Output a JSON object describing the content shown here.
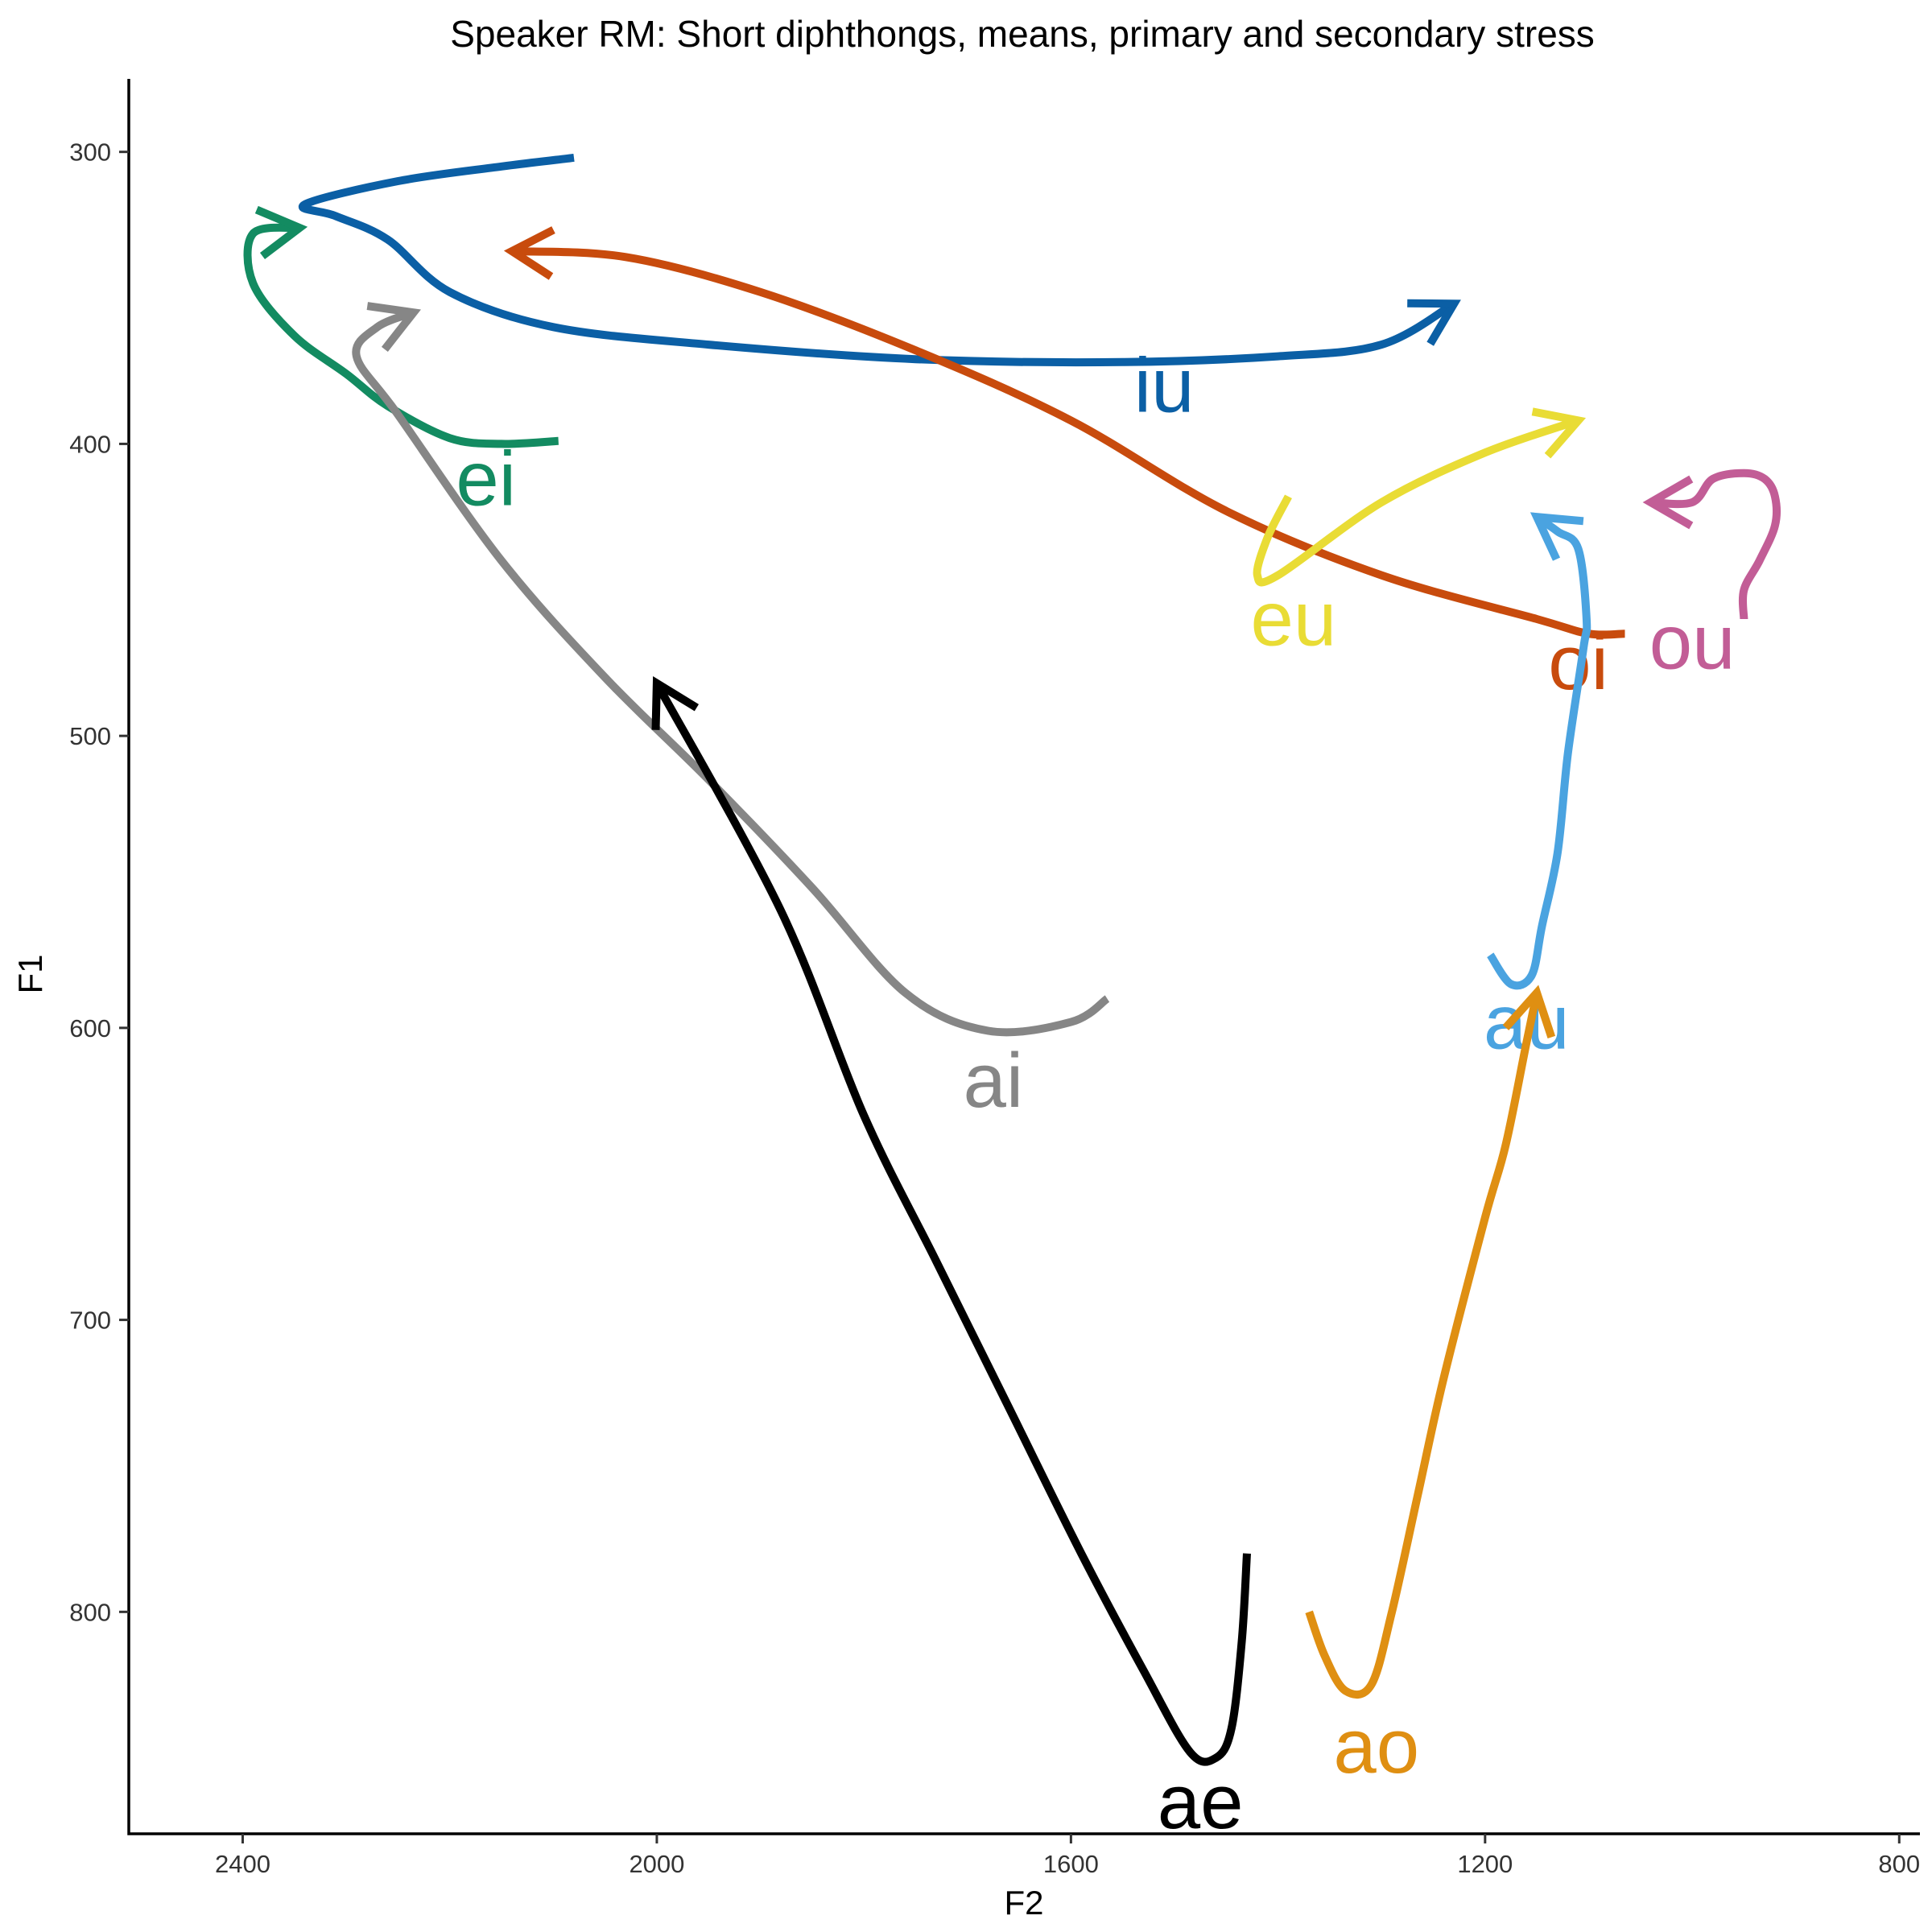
{
  "chart_data": {
    "type": "line",
    "title": "Speaker RM: Short diphthongs, means, primary and secondary stress",
    "xlabel": "F2",
    "ylabel": "F1",
    "xlim": [
      2510,
      780
    ],
    "ylim": [
      876,
      275
    ],
    "x_reversed": true,
    "y_reversed": true,
    "x_ticks": [
      2400,
      2000,
      1600,
      1200,
      800
    ],
    "y_ticks": [
      300,
      400,
      500,
      600,
      700,
      800
    ],
    "grid": false,
    "legend": "none",
    "series": [
      {
        "name": "iu",
        "color": "#0b5fa5",
        "label_pos": [
          1510,
          382
        ],
        "points": [
          [
            2080,
            302
          ],
          [
            2150,
            305
          ],
          [
            2250,
            310
          ],
          [
            2340,
            318
          ],
          [
            2310,
            322
          ],
          [
            2260,
            330
          ],
          [
            2200,
            348
          ],
          [
            2100,
            360
          ],
          [
            1950,
            366
          ],
          [
            1750,
            371
          ],
          [
            1550,
            372
          ],
          [
            1400,
            370
          ],
          [
            1300,
            366
          ],
          [
            1230,
            352
          ]
        ]
      },
      {
        "name": "ei",
        "color": "#138b61",
        "label_pos": [
          2165,
          414
        ],
        "points": [
          [
            2095,
            399
          ],
          [
            2150,
            400
          ],
          [
            2200,
            398
          ],
          [
            2260,
            387
          ],
          [
            2300,
            376
          ],
          [
            2350,
            363
          ],
          [
            2390,
            345
          ],
          [
            2390,
            328
          ],
          [
            2345,
            326
          ]
        ]
      },
      {
        "name": "oi",
        "color": "#c84b0d",
        "label_pos": [
          1110,
          477
        ],
        "points": [
          [
            1065,
            465
          ],
          [
            1100,
            465
          ],
          [
            1150,
            460
          ],
          [
            1300,
            445
          ],
          [
            1450,
            423
          ],
          [
            1600,
            392
          ],
          [
            1750,
            368
          ],
          [
            1900,
            348
          ],
          [
            2030,
            336
          ],
          [
            2140,
            334
          ]
        ]
      },
      {
        "name": "ai",
        "color": "#868686",
        "label_pos": [
          1675,
          620
        ],
        "points": [
          [
            1565,
            590
          ],
          [
            1600,
            598
          ],
          [
            1680,
            601
          ],
          [
            1760,
            588
          ],
          [
            1850,
            552
          ],
          [
            1950,
            515
          ],
          [
            2050,
            480
          ],
          [
            2150,
            440
          ],
          [
            2250,
            390
          ],
          [
            2290,
            370
          ],
          [
            2270,
            360
          ],
          [
            2235,
            355
          ]
        ]
      },
      {
        "name": "eu",
        "color": "#e9dc35",
        "label_pos": [
          1385,
          462
        ],
        "points": [
          [
            1390,
            418
          ],
          [
            1410,
            432
          ],
          [
            1420,
            445
          ],
          [
            1400,
            445
          ],
          [
            1300,
            420
          ],
          [
            1200,
            403
          ],
          [
            1110,
            392
          ]
        ]
      },
      {
        "name": "au",
        "color": "#4aa3e0",
        "label_pos": [
          1160,
          600
        ],
        "points": [
          [
            1195,
            575
          ],
          [
            1175,
            585
          ],
          [
            1155,
            582
          ],
          [
            1145,
            565
          ],
          [
            1130,
            540
          ],
          [
            1120,
            506
          ],
          [
            1105,
            470
          ],
          [
            1102,
            460
          ],
          [
            1110,
            436
          ],
          [
            1130,
            430
          ],
          [
            1150,
            425
          ]
        ]
      },
      {
        "name": "ou",
        "color": "#c25d96",
        "label_pos": [
          1000,
          470
        ],
        "points": [
          [
            950,
            460
          ],
          [
            950,
            450
          ],
          [
            935,
            440
          ],
          [
            920,
            428
          ],
          [
            920,
            418
          ],
          [
            930,
            412
          ],
          [
            950,
            410
          ],
          [
            980,
            412
          ],
          [
            1000,
            420
          ],
          [
            1040,
            420
          ]
        ]
      },
      {
        "name": "ae",
        "color": "#000000",
        "label_pos": [
          1475,
          867
        ],
        "points": [
          [
            1430,
            780
          ],
          [
            1435,
            810
          ],
          [
            1445,
            840
          ],
          [
            1460,
            850
          ],
          [
            1485,
            848
          ],
          [
            1530,
            820
          ],
          [
            1590,
            780
          ],
          [
            1660,
            730
          ],
          [
            1730,
            680
          ],
          [
            1800,
            630
          ],
          [
            1880,
            560
          ],
          [
            2000,
            482
          ]
        ]
      },
      {
        "name": "ao",
        "color": "#df8f12",
        "label_pos": [
          1305,
          848
        ],
        "points": [
          [
            1370,
            800
          ],
          [
            1355,
            815
          ],
          [
            1335,
            827
          ],
          [
            1310,
            825
          ],
          [
            1290,
            800
          ],
          [
            1265,
            760
          ],
          [
            1240,
            720
          ],
          [
            1200,
            665
          ],
          [
            1180,
            640
          ],
          [
            1160,
            605
          ],
          [
            1150,
            588
          ]
        ]
      }
    ]
  }
}
